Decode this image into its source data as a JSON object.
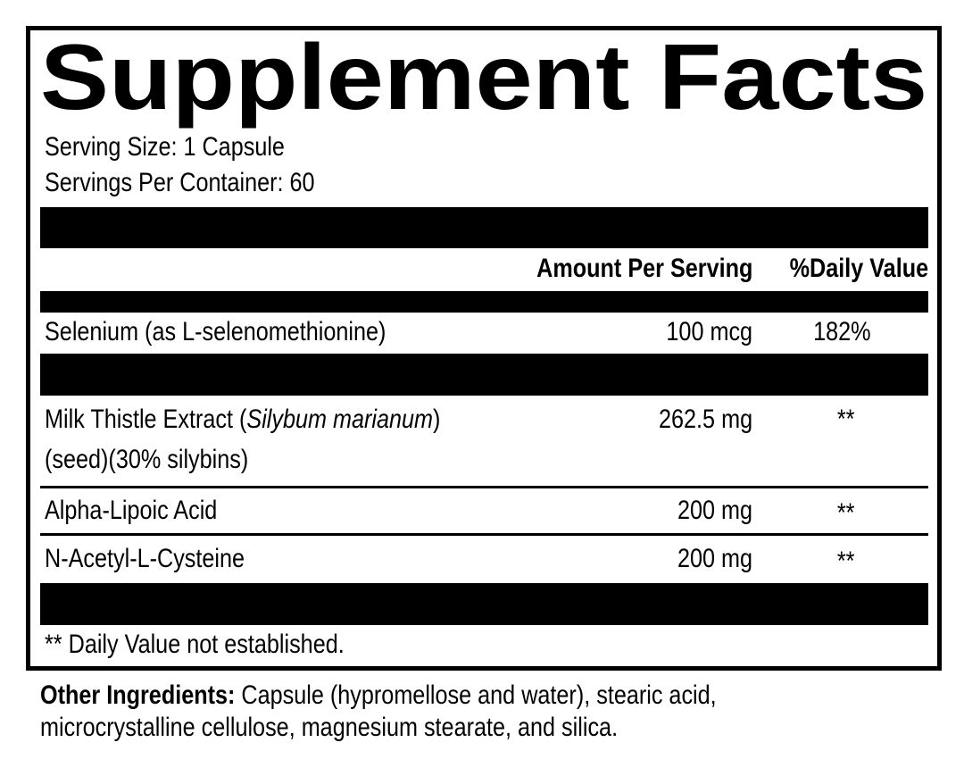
{
  "title": "Supplement Facts",
  "serving_size": "Serving Size: 1 Capsule",
  "servings_per_container": "Servings Per Container: 60",
  "header": {
    "amount": "Amount Per Serving",
    "daily_value": "%Daily Value"
  },
  "rows": [
    {
      "name": "Selenium (as L-selenomethionine)",
      "amount": "100 mcg",
      "dv": "182%"
    },
    {
      "name_pre": "Milk Thistle Extract (",
      "name_italic": "Silybum marianum",
      "name_post": ")",
      "name_line2": "(seed)(30% silybins)",
      "amount": "262.5 mg",
      "dv": "**"
    },
    {
      "name": "Alpha-Lipoic Acid",
      "amount": "200 mg",
      "dv": "**"
    },
    {
      "name": "N-Acetyl-L-Cysteine",
      "amount": "200 mg",
      "dv": "**"
    }
  ],
  "footnote": "** Daily Value not established.",
  "other_ingredients": {
    "label": "Other Ingredients:",
    "line1": " Capsule (hypromellose and water), stearic acid,",
    "line2": "microcrystalline cellulose, magnesium stearate, and silica."
  }
}
